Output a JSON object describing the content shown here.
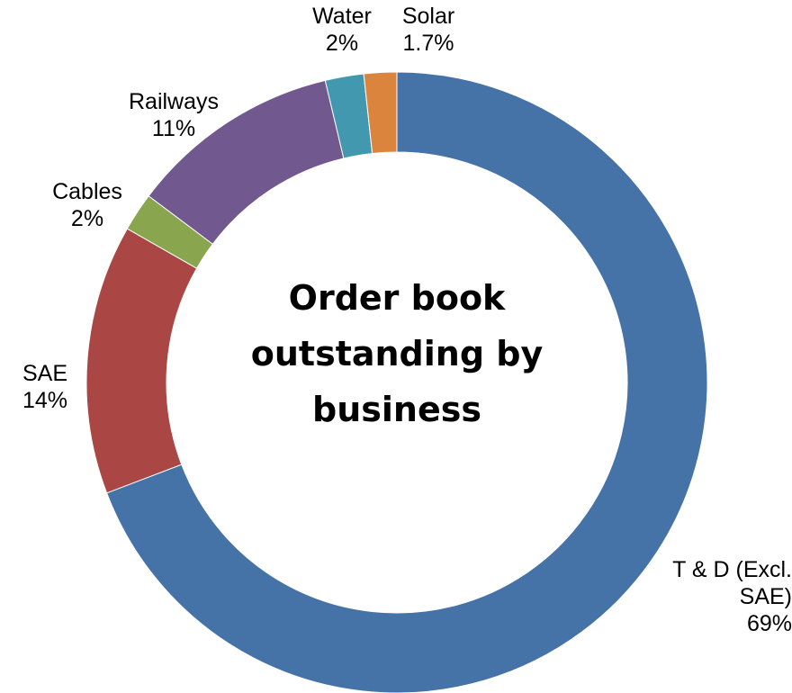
{
  "chart_data": {
    "type": "donut",
    "title": "Order book outstanding by business",
    "categories": [
      "T & D (Excl. SAE)",
      "SAE",
      "Cables",
      "Railways",
      "Water",
      "Solar"
    ],
    "values": [
      69,
      14,
      2,
      11,
      2,
      1.7
    ],
    "value_labels": [
      "69%",
      "14%",
      "2%",
      "11%",
      "2%",
      "1.7%"
    ],
    "colors": [
      "#4572a7",
      "#aa4643",
      "#89a54e",
      "#71588f",
      "#4198af",
      "#db843d"
    ]
  }
}
